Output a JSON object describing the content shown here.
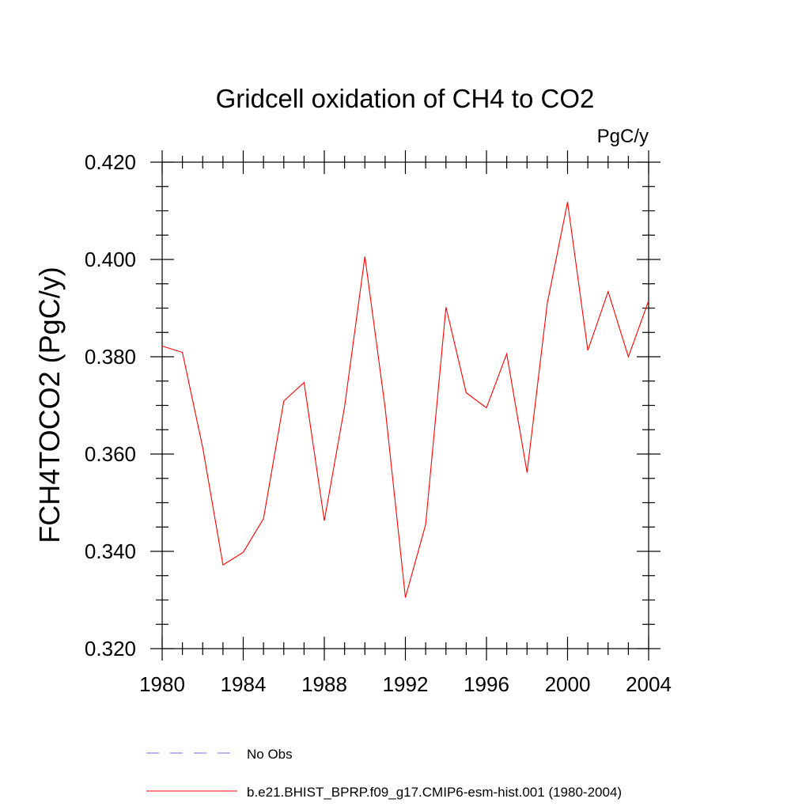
{
  "chart_data": {
    "type": "line",
    "title": "Gridcell oxidation of CH4 to CO2",
    "units": "PgC/y",
    "ylabel": "FCH4TOCO2  (PgC/y)",
    "xlabel": "",
    "xlim": [
      1980,
      2004
    ],
    "ylim": [
      0.32,
      0.42
    ],
    "x_ticks": [
      1980,
      1984,
      1988,
      1992,
      1996,
      2000,
      2004
    ],
    "x_tick_labels": [
      "1980",
      "1984",
      "1988",
      "1992",
      "1996",
      "2000",
      "2004"
    ],
    "y_ticks": [
      0.32,
      0.34,
      0.36,
      0.38,
      0.4,
      0.42
    ],
    "y_tick_labels": [
      "0.320",
      "0.340",
      "0.360",
      "0.380",
      "0.400",
      "0.420"
    ],
    "grid": false,
    "legend_position": "bottom",
    "series": [
      {
        "name": "No Obs",
        "color": "#7b68ee",
        "dash": true,
        "x": [],
        "y": []
      },
      {
        "name": "b.e21.BHIST_BPRP.f09_g17.CMIP6-esm-hist.001 (1980-2004)",
        "color": "#ff0000",
        "dash": false,
        "x": [
          1980,
          1981,
          1982,
          1983,
          1984,
          1985,
          1986,
          1987,
          1988,
          1989,
          1990,
          1991,
          1992,
          1993,
          1994,
          1995,
          1996,
          1997,
          1998,
          1999,
          2000,
          2001,
          2002,
          2003,
          2004
        ],
        "y": [
          0.3822,
          0.3809,
          0.3613,
          0.3372,
          0.3398,
          0.3467,
          0.3709,
          0.3747,
          0.3463,
          0.3697,
          0.4006,
          0.3695,
          0.3305,
          0.3455,
          0.3902,
          0.3726,
          0.3695,
          0.3806,
          0.3562,
          0.391,
          0.4118,
          0.3813,
          0.3934,
          0.38,
          0.3915
        ]
      }
    ]
  }
}
